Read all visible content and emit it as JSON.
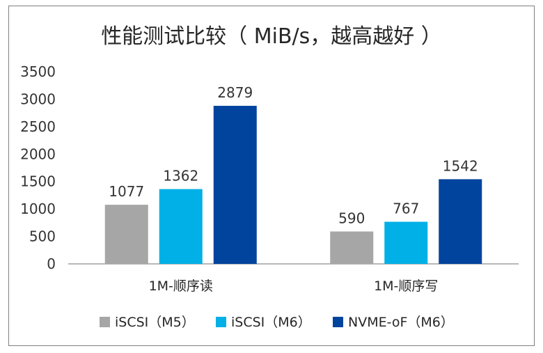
{
  "chart_data": {
    "type": "bar",
    "title": "性能测试比较（ MiB/s，越高越好 ）",
    "categories": [
      "1M-顺序读",
      "1M-顺序写"
    ],
    "series": [
      {
        "name": "iSCSI（M5）",
        "color": "#a6a6a6",
        "values": [
          1077,
          590
        ]
      },
      {
        "name": "iSCSI（M6）",
        "color": "#00b0e6",
        "values": [
          1362,
          767
        ]
      },
      {
        "name": "NVME-oF（M6）",
        "color": "#00449e",
        "values": [
          2879,
          1542
        ]
      }
    ],
    "y_ticks": [
      "0",
      "500",
      "1000",
      "1500",
      "2000",
      "2500",
      "3000",
      "3500"
    ],
    "ylim": [
      0,
      3500
    ],
    "xlabel": "",
    "ylabel": "",
    "legend_position": "bottom",
    "grid": false
  }
}
